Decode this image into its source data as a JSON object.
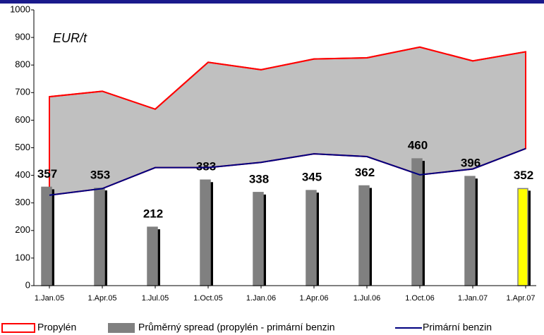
{
  "chart_data": {
    "type": "bar_area_line",
    "unit_label": "EUR/t",
    "categories": [
      "1.Jan.05",
      "1.Apr.05",
      "1.Jul.05",
      "1.Oct.05",
      "1.Jan.06",
      "1.Apr.06",
      "1.Jul.06",
      "1.Oct.06",
      "1.Jan.07",
      "1.Apr.07"
    ],
    "series": [
      {
        "name": "Propylén",
        "color": "#ff0000",
        "fill": "#c0c0c0",
        "values": [
          685,
          705,
          640,
          810,
          783,
          822,
          826,
          865,
          815,
          848
        ]
      },
      {
        "name": "Průměrný spread (propylén - primární benzin",
        "color": "#808080",
        "shadow": "#000000",
        "colors": [
          "#808080",
          "#808080",
          "#808080",
          "#808080",
          "#808080",
          "#808080",
          "#808080",
          "#808080",
          "#808080",
          "#ffff00"
        ],
        "values": [
          357,
          353,
          212,
          383,
          338,
          345,
          362,
          460,
          396,
          352
        ]
      },
      {
        "name": "Primární benzin",
        "color": "#000080",
        "values": [
          328,
          352,
          428,
          428,
          447,
          478,
          468,
          402,
          423,
          497
        ]
      }
    ],
    "ylim": [
      0,
      1000
    ],
    "yticks": [
      0,
      100,
      200,
      300,
      400,
      500,
      600,
      700,
      800,
      900,
      1000
    ]
  }
}
